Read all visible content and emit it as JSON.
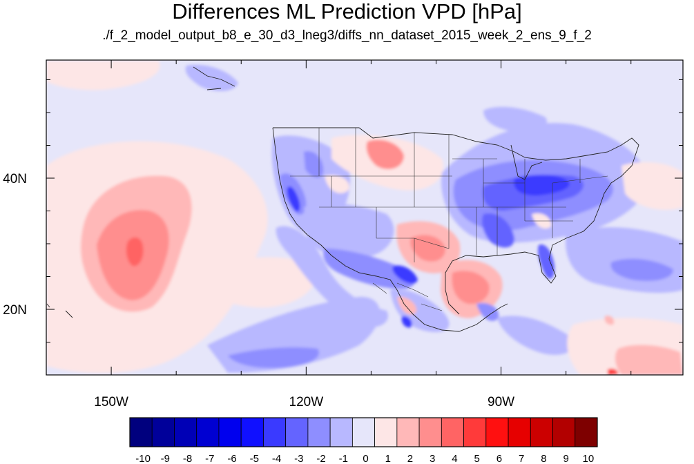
{
  "title": "Differences ML Prediction VPD [hPa]",
  "subtitle": "./f_2_model_output_b8_e_30_d3_lneg3/diffs_nn_dataset_2015_week_2_ens_9_f_2",
  "map": {
    "lon_range": [
      -160,
      -62
    ],
    "lat_range": [
      10,
      58
    ],
    "lon_ticks": [
      {
        "value": -150,
        "label": "150W"
      },
      {
        "value": -120,
        "label": "120W"
      },
      {
        "value": -90,
        "label": "90W"
      }
    ],
    "lat_ticks": [
      {
        "value": 40,
        "label": "40N"
      },
      {
        "value": 20,
        "label": "20N"
      }
    ],
    "background_color": "#e6e6fa"
  },
  "colorbar": {
    "labels": [
      "-10",
      "-9",
      "-8",
      "-7",
      "-6",
      "-5",
      "-4",
      "-3",
      "-2",
      "-1",
      "0",
      "1",
      "2",
      "3",
      "4",
      "5",
      "6",
      "7",
      "8",
      "9",
      "10"
    ],
    "colors": [
      "#00007e",
      "#00009a",
      "#0000b6",
      "#0000d2",
      "#0000ee",
      "#1010ff",
      "#3a3aff",
      "#6464ff",
      "#8e8eff",
      "#b8b8ff",
      "#e6e6fa",
      "#fde6e6",
      "#ffb8b8",
      "#ff8e8e",
      "#ff6464",
      "#ff3a3a",
      "#ff1010",
      "#e60000",
      "#cc0000",
      "#b20000",
      "#7e0000"
    ]
  }
}
